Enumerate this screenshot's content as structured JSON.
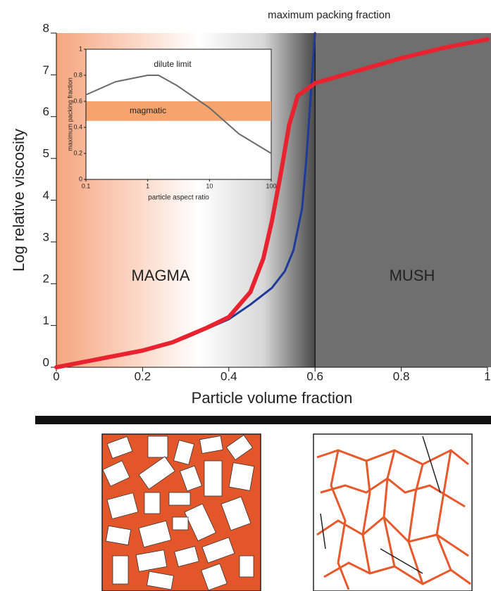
{
  "chart_data": [
    {
      "type": "line",
      "annotation": "maximum packing fraction",
      "xlabel": "Particle volume fraction",
      "ylabel": "Log relative viscosity",
      "region_labels": [
        "MAGMA",
        "MUSH"
      ],
      "xlim": [
        0,
        1
      ],
      "ylim": [
        0,
        8
      ],
      "xticks": [
        0,
        0.2,
        0.4,
        0.6,
        0.8,
        1
      ],
      "yticks": [
        0,
        1,
        2,
        3,
        4,
        5,
        6,
        7,
        8
      ],
      "vline": 0.6,
      "series": [
        {
          "color": "#1f3a9a",
          "x": [
            0,
            0.1,
            0.2,
            0.3,
            0.4,
            0.45,
            0.5,
            0.53,
            0.55,
            0.57,
            0.58,
            0.59,
            0.6
          ],
          "values": [
            0,
            0.2,
            0.4,
            0.7,
            1.15,
            1.5,
            1.9,
            2.3,
            2.8,
            3.8,
            5,
            6.5,
            8
          ]
        },
        {
          "color": "#e8222e",
          "x": [
            0,
            0.1,
            0.2,
            0.27,
            0.35,
            0.4,
            0.45,
            0.48,
            0.5,
            0.52,
            0.54,
            0.56,
            0.6,
            0.7,
            0.8,
            0.9,
            1
          ],
          "values": [
            0,
            0.2,
            0.4,
            0.6,
            0.95,
            1.2,
            1.8,
            2.6,
            3.5,
            4.6,
            5.8,
            6.5,
            6.8,
            7.1,
            7.4,
            7.65,
            7.85
          ]
        }
      ]
    },
    {
      "type": "line",
      "xlabel": "particle aspect ratio",
      "ylabel": "maximum packing fraction",
      "annotation": "dilute limit",
      "xscale": "log",
      "xlim": [
        0.1,
        100
      ],
      "ylim": [
        0,
        1
      ],
      "xticks": [
        0.1,
        1,
        10,
        100
      ],
      "yticks": [
        0,
        0.2,
        0.4,
        0.6,
        0.8,
        1
      ],
      "band": {
        "range": [
          0.45,
          0.6
        ],
        "label": "magmatic",
        "color": "#f4a46c"
      },
      "series": [
        {
          "color": "#6a6a6a",
          "x": [
            0.1,
            0.3,
            1,
            1.5,
            3,
            10,
            30,
            100
          ],
          "values": [
            0.65,
            0.75,
            0.8,
            0.8,
            0.72,
            0.55,
            0.35,
            0.2
          ]
        }
      ]
    }
  ]
}
